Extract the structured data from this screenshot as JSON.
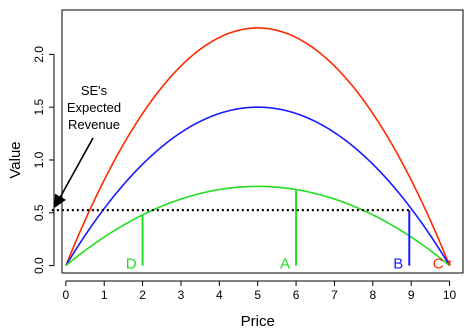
{
  "chart_data": {
    "type": "line",
    "xlabel": "Price",
    "ylabel": "Value",
    "xlim": [
      -0.1,
      10.35
    ],
    "ylim": [
      -0.07,
      2.42
    ],
    "x_ticks": [
      0,
      1,
      2,
      3,
      4,
      5,
      6,
      7,
      8,
      9,
      10
    ],
    "y_ticks": [
      0.0,
      0.5,
      1.0,
      1.5,
      2.0
    ],
    "x_tick_labels": [
      "0",
      "1",
      "2",
      "3",
      "4",
      "5",
      "6",
      "7",
      "8",
      "9",
      "10"
    ],
    "y_tick_labels": [
      "0.0",
      "0.5",
      "1.0",
      "1.5",
      "2.0"
    ],
    "series": [
      {
        "color": "#ff2a00",
        "peak_x": 5,
        "peak_y": 2.25,
        "x": [
          0,
          5,
          10
        ],
        "y": [
          0,
          2.25,
          0
        ]
      },
      {
        "color": "#1a1aff",
        "peak_x": 5,
        "peak_y": 1.5,
        "x": [
          0,
          5,
          10
        ],
        "y": [
          0,
          1.5,
          0
        ]
      },
      {
        "color": "#22dd22",
        "peak_x": 5,
        "peak_y": 0.75,
        "x": [
          0,
          5,
          10
        ],
        "y": [
          0,
          0.75,
          0
        ]
      }
    ],
    "reference_line": {
      "y": 0.525,
      "style": "dotted",
      "color": "#000000"
    },
    "annotation": {
      "lines": [
        "SE's",
        "Expected",
        "Revenue"
      ],
      "arrow_target": {
        "x": 0,
        "y": 0.525
      }
    },
    "markers": [
      {
        "label": "D",
        "x": 2,
        "color": "#22dd22"
      },
      {
        "label": "A",
        "x": 6,
        "color": "#22dd22"
      },
      {
        "label": "B",
        "x": 8.95,
        "color": "#1a1aff"
      },
      {
        "label": "C",
        "x": 10,
        "color": "#ff2a00"
      }
    ]
  }
}
